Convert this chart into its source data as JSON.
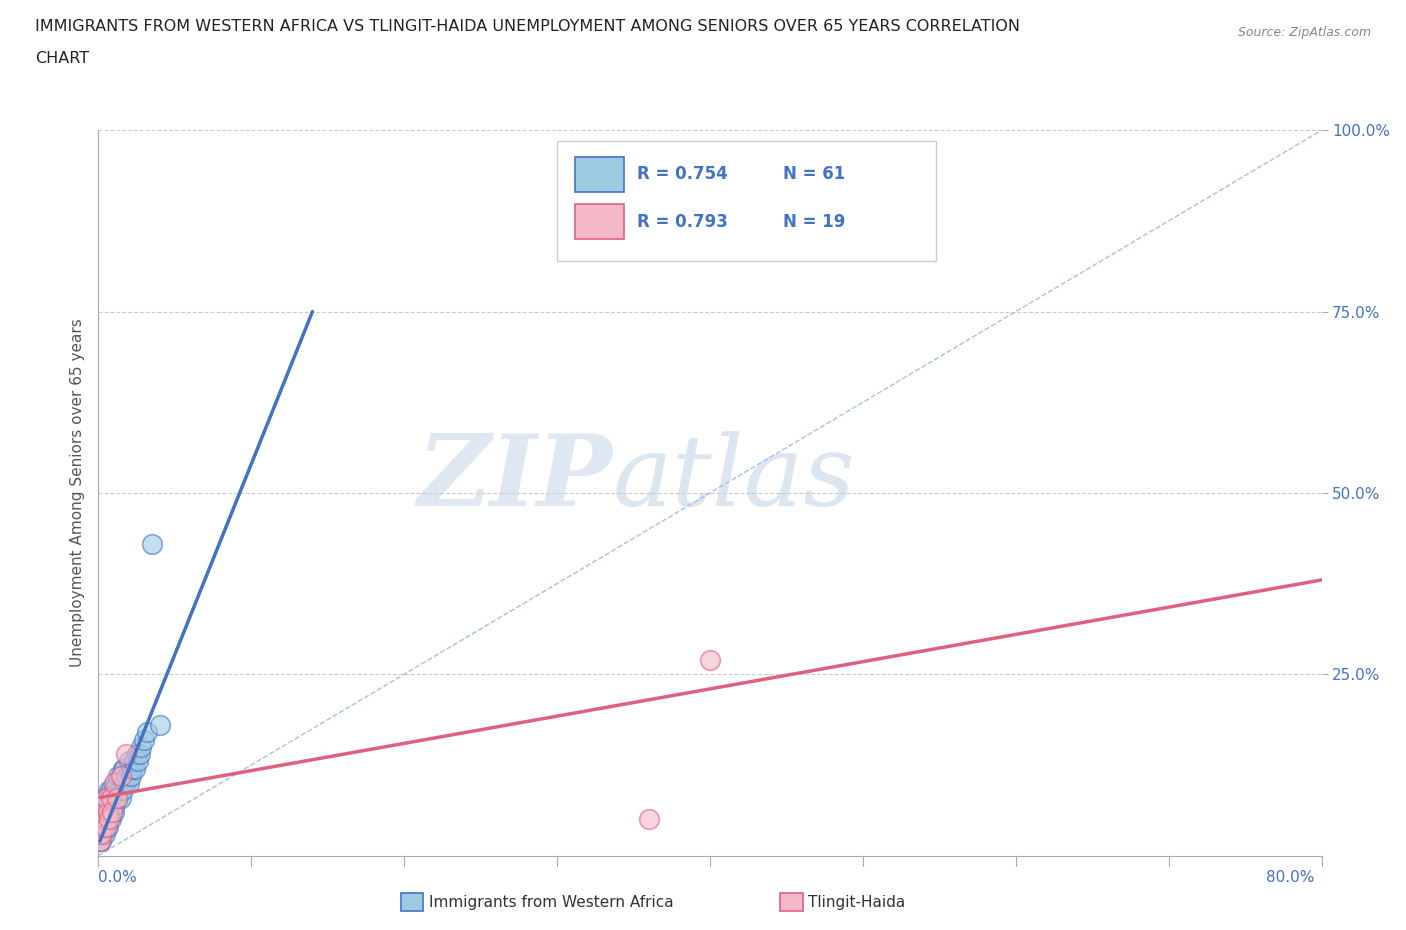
{
  "title_line1": "IMMIGRANTS FROM WESTERN AFRICA VS TLINGIT-HAIDA UNEMPLOYMENT AMONG SENIORS OVER 65 YEARS CORRELATION",
  "title_line2": "CHART",
  "source": "Source: ZipAtlas.com",
  "ylabel": "Unemployment Among Seniors over 65 years",
  "xlim": [
    0.0,
    0.8
  ],
  "ylim": [
    0.0,
    1.0
  ],
  "watermark_zip": "ZIP",
  "watermark_atlas": "atlas",
  "blue_color": "#4472C4",
  "blue_fill": "#9ecae1",
  "pink_color": "#e06080",
  "pink_fill": "#f4b8c8",
  "legend_R_blue": "R = 0.754",
  "legend_N_blue": "N = 61",
  "legend_R_pink": "R = 0.793",
  "legend_N_pink": "N = 19",
  "blue_scatter_x": [
    0.001,
    0.001,
    0.001,
    0.002,
    0.002,
    0.002,
    0.002,
    0.003,
    0.003,
    0.003,
    0.003,
    0.004,
    0.004,
    0.004,
    0.004,
    0.005,
    0.005,
    0.005,
    0.005,
    0.006,
    0.006,
    0.006,
    0.007,
    0.007,
    0.007,
    0.008,
    0.008,
    0.008,
    0.009,
    0.009,
    0.01,
    0.01,
    0.011,
    0.011,
    0.012,
    0.012,
    0.013,
    0.013,
    0.014,
    0.015,
    0.015,
    0.016,
    0.016,
    0.017,
    0.017,
    0.018,
    0.019,
    0.02,
    0.02,
    0.021,
    0.022,
    0.023,
    0.024,
    0.025,
    0.026,
    0.027,
    0.028,
    0.03,
    0.032,
    0.035,
    0.04
  ],
  "blue_scatter_y": [
    0.02,
    0.03,
    0.04,
    0.02,
    0.04,
    0.05,
    0.06,
    0.03,
    0.04,
    0.06,
    0.07,
    0.03,
    0.05,
    0.06,
    0.08,
    0.04,
    0.05,
    0.07,
    0.08,
    0.04,
    0.06,
    0.08,
    0.05,
    0.07,
    0.09,
    0.05,
    0.07,
    0.09,
    0.06,
    0.08,
    0.06,
    0.09,
    0.07,
    0.1,
    0.08,
    0.1,
    0.08,
    0.11,
    0.09,
    0.08,
    0.11,
    0.09,
    0.12,
    0.1,
    0.12,
    0.1,
    0.11,
    0.1,
    0.13,
    0.11,
    0.12,
    0.13,
    0.12,
    0.14,
    0.13,
    0.14,
    0.15,
    0.16,
    0.17,
    0.43,
    0.18
  ],
  "pink_scatter_x": [
    0.001,
    0.001,
    0.002,
    0.002,
    0.003,
    0.003,
    0.004,
    0.005,
    0.005,
    0.006,
    0.007,
    0.008,
    0.009,
    0.01,
    0.012,
    0.015,
    0.018,
    0.36,
    0.4
  ],
  "pink_scatter_y": [
    0.02,
    0.04,
    0.03,
    0.05,
    0.04,
    0.07,
    0.05,
    0.04,
    0.08,
    0.06,
    0.05,
    0.08,
    0.06,
    0.1,
    0.08,
    0.11,
    0.14,
    0.05,
    0.27
  ],
  "blue_trend_x": [
    0.001,
    0.14
  ],
  "blue_trend_y": [
    0.02,
    0.75
  ],
  "pink_trend_x": [
    0.001,
    0.8
  ],
  "pink_trend_y": [
    0.08,
    0.38
  ],
  "ref_line_x": [
    0.0,
    0.8
  ],
  "ref_line_y": [
    0.0,
    1.0
  ],
  "ref_line_color": "#a0b8e0",
  "background_color": "#ffffff",
  "grid_color": "#cccccc",
  "title_color": "#222222",
  "axis_label_color": "#555555",
  "tick_color": "#4472C4",
  "bottom_legend_blue_label": "Immigrants from Western Africa",
  "bottom_legend_pink_label": "Tlingit-Haida"
}
